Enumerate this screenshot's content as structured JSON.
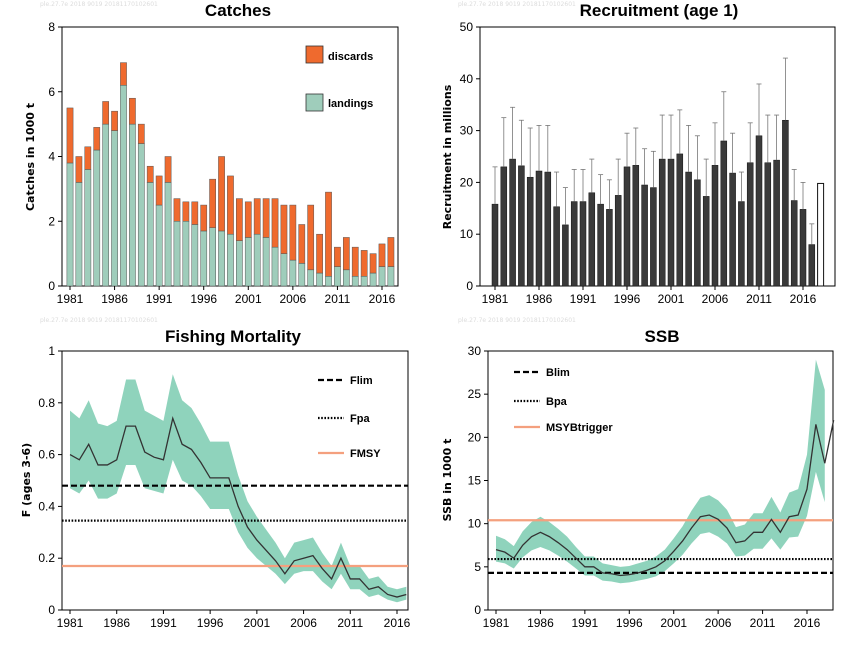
{
  "watermark": "ple.27.7e  2018  9019  20181170102601",
  "colors": {
    "discards": "#ef6a2e",
    "landings": "#9fcdbb",
    "recruit_bar": "#3a3a3a",
    "recruit_last": "#ffffff",
    "ribbon": "#8fd3bc",
    "line": "#333333",
    "ref_black": "#000000",
    "ref_orange": "#f4a07e"
  },
  "chart_data": [
    {
      "id": "catches",
      "type": "bar",
      "stacked": true,
      "title": "Catches",
      "xlabel": "",
      "ylabel": "Catches in 1000 t",
      "ylim": [
        0,
        8
      ],
      "yticks": [
        0,
        2,
        4,
        6,
        8
      ],
      "xticks": [
        1981,
        1986,
        1991,
        1996,
        2001,
        2006,
        2011,
        2016
      ],
      "legend": {
        "placement": "top-right",
        "entries": [
          "discards",
          "landings"
        ]
      },
      "categories": [
        1981,
        1982,
        1983,
        1984,
        1985,
        1986,
        1987,
        1988,
        1989,
        1990,
        1991,
        1992,
        1993,
        1994,
        1995,
        1996,
        1997,
        1998,
        1999,
        2000,
        2001,
        2002,
        2003,
        2004,
        2005,
        2006,
        2007,
        2008,
        2009,
        2010,
        2011,
        2012,
        2013,
        2014,
        2015,
        2016,
        2017
      ],
      "series": [
        {
          "name": "landings",
          "values": [
            3.8,
            3.2,
            3.6,
            4.2,
            5.0,
            4.8,
            6.2,
            5.0,
            4.4,
            3.2,
            2.5,
            3.2,
            2.0,
            2.0,
            1.9,
            1.7,
            1.8,
            1.7,
            1.6,
            1.4,
            1.5,
            1.6,
            1.5,
            1.2,
            1.0,
            0.8,
            0.7,
            0.5,
            0.4,
            0.3,
            0.6,
            0.5,
            0.3,
            0.3,
            0.4,
            0.6,
            0.6
          ]
        },
        {
          "name": "discards",
          "values": [
            1.7,
            0.8,
            0.7,
            0.7,
            0.7,
            0.6,
            0.7,
            0.8,
            0.6,
            0.5,
            0.9,
            0.8,
            0.7,
            0.6,
            0.7,
            0.8,
            1.5,
            2.3,
            1.8,
            1.3,
            1.1,
            1.1,
            1.2,
            1.5,
            1.5,
            1.7,
            1.2,
            2.0,
            1.2,
            2.6,
            0.6,
            1.0,
            0.9,
            0.8,
            0.6,
            0.7,
            0.9
          ]
        }
      ]
    },
    {
      "id": "recruitment",
      "type": "bar",
      "title": "Recruitment (age 1)",
      "xlabel": "",
      "ylabel": "Recruitment in millions",
      "ylim": [
        0,
        50
      ],
      "yticks": [
        0,
        10,
        20,
        30,
        40,
        50
      ],
      "xticks": [
        1981,
        1986,
        1991,
        1996,
        2001,
        2006,
        2011,
        2016
      ],
      "categories": [
        1981,
        1982,
        1983,
        1984,
        1985,
        1986,
        1987,
        1988,
        1989,
        1990,
        1991,
        1992,
        1993,
        1994,
        1995,
        1996,
        1997,
        1998,
        1999,
        2000,
        2001,
        2002,
        2003,
        2004,
        2005,
        2006,
        2007,
        2008,
        2009,
        2010,
        2011,
        2012,
        2013,
        2014,
        2015,
        2016,
        2017,
        2018
      ],
      "values": [
        15.8,
        23.0,
        24.5,
        23.2,
        21.0,
        22.2,
        22.0,
        15.3,
        11.8,
        16.3,
        16.3,
        18.0,
        15.8,
        14.8,
        17.5,
        23.0,
        23.3,
        19.5,
        19.0,
        24.5,
        24.5,
        25.5,
        22.0,
        20.5,
        17.3,
        23.3,
        28.0,
        21.8,
        16.3,
        23.8,
        29.0,
        23.8,
        24.3,
        32.0,
        16.5,
        14.8,
        8.0,
        19.8
      ],
      "upper": [
        23.0,
        32.5,
        34.5,
        32.0,
        30.5,
        31.0,
        31.0,
        22.0,
        19.0,
        22.5,
        22.5,
        24.5,
        21.5,
        20.5,
        24.5,
        29.5,
        30.5,
        26.5,
        26.0,
        33.0,
        33.0,
        34.0,
        31.0,
        29.0,
        24.5,
        31.5,
        37.5,
        29.5,
        22.0,
        31.5,
        39.0,
        33.0,
        33.0,
        44.0,
        22.5,
        20.0,
        12.0,
        null
      ],
      "last_value_highlighted": true
    },
    {
      "id": "fishing-mortality",
      "type": "line",
      "title": "Fishing Mortality",
      "xlabel": "",
      "ylabel": "F (ages 3-6)",
      "ylim": [
        0,
        1
      ],
      "yticks": [
        0,
        0.2,
        0.4,
        0.6,
        0.8,
        1
      ],
      "xticks": [
        1981,
        1986,
        1991,
        1996,
        2001,
        2006,
        2011,
        2016
      ],
      "legend": {
        "placement": "top-right",
        "entries": [
          "Flim",
          "Fpa",
          "FMSY"
        ]
      },
      "x": [
        1981,
        1982,
        1983,
        1984,
        1985,
        1986,
        1987,
        1988,
        1989,
        1990,
        1991,
        1992,
        1993,
        1994,
        1995,
        1996,
        1997,
        1998,
        1999,
        2000,
        2001,
        2002,
        2003,
        2004,
        2005,
        2006,
        2007,
        2008,
        2009,
        2010,
        2011,
        2012,
        2013,
        2014,
        2015,
        2016,
        2017
      ],
      "values": [
        0.6,
        0.58,
        0.64,
        0.56,
        0.56,
        0.58,
        0.71,
        0.71,
        0.61,
        0.59,
        0.58,
        0.74,
        0.64,
        0.62,
        0.57,
        0.51,
        0.51,
        0.51,
        0.4,
        0.32,
        0.27,
        0.23,
        0.19,
        0.14,
        0.19,
        0.2,
        0.21,
        0.16,
        0.12,
        0.2,
        0.12,
        0.12,
        0.08,
        0.09,
        0.06,
        0.05,
        0.06
      ],
      "upper": [
        0.77,
        0.74,
        0.81,
        0.72,
        0.71,
        0.73,
        0.89,
        0.89,
        0.77,
        0.75,
        0.73,
        0.91,
        0.81,
        0.78,
        0.72,
        0.65,
        0.65,
        0.65,
        0.52,
        0.42,
        0.36,
        0.31,
        0.26,
        0.2,
        0.26,
        0.27,
        0.28,
        0.22,
        0.17,
        0.26,
        0.17,
        0.17,
        0.12,
        0.13,
        0.09,
        0.08,
        0.09
      ],
      "lower": [
        0.47,
        0.45,
        0.5,
        0.43,
        0.43,
        0.45,
        0.56,
        0.56,
        0.47,
        0.46,
        0.45,
        0.58,
        0.5,
        0.48,
        0.44,
        0.39,
        0.39,
        0.39,
        0.3,
        0.24,
        0.2,
        0.17,
        0.14,
        0.1,
        0.14,
        0.15,
        0.15,
        0.11,
        0.08,
        0.14,
        0.08,
        0.08,
        0.05,
        0.06,
        0.04,
        0.03,
        0.04
      ],
      "reference_lines": [
        {
          "name": "Flim",
          "value": 0.48,
          "style": "dashed",
          "color": "#000000"
        },
        {
          "name": "Fpa",
          "value": 0.345,
          "style": "dotted",
          "color": "#000000"
        },
        {
          "name": "FMSY",
          "value": 0.17,
          "style": "solid",
          "color": "#f4a07e"
        }
      ]
    },
    {
      "id": "ssb",
      "type": "line",
      "title": "SSB",
      "xlabel": "",
      "ylabel": "SSB in 1000 t",
      "ylim": [
        0,
        30
      ],
      "yticks": [
        0,
        5,
        10,
        15,
        20,
        25,
        30
      ],
      "xticks": [
        1981,
        1986,
        1991,
        1996,
        2001,
        2006,
        2011,
        2016
      ],
      "legend": {
        "placement": "top-left",
        "entries": [
          "Blim",
          "Bpa",
          "MSYBtrigger"
        ]
      },
      "x": [
        1981,
        1982,
        1983,
        1984,
        1985,
        1986,
        1987,
        1988,
        1989,
        1990,
        1991,
        1992,
        1993,
        1994,
        1995,
        1996,
        1997,
        1998,
        1999,
        2000,
        2001,
        2002,
        2003,
        2004,
        2005,
        2006,
        2007,
        2008,
        2009,
        2010,
        2011,
        2012,
        2013,
        2014,
        2015,
        2016,
        2017,
        2018
      ],
      "values": [
        7.0,
        6.7,
        6.0,
        7.5,
        8.5,
        9.0,
        8.5,
        7.8,
        7.0,
        6.0,
        5.0,
        5.0,
        4.3,
        4.2,
        4.0,
        4.1,
        4.3,
        4.6,
        5.0,
        5.7,
        6.8,
        8.0,
        9.5,
        10.8,
        11.0,
        10.5,
        9.5,
        7.8,
        8.0,
        9.0,
        9.0,
        10.5,
        9.0,
        10.8,
        11.0,
        14.0,
        21.5,
        17.0
      ],
      "upper": [
        8.6,
        8.2,
        7.4,
        9.1,
        10.2,
        10.8,
        10.2,
        9.4,
        8.5,
        7.3,
        6.2,
        6.2,
        5.4,
        5.2,
        5.0,
        5.1,
        5.4,
        5.7,
        6.2,
        7.0,
        8.3,
        9.7,
        11.5,
        13.0,
        13.3,
        12.7,
        11.6,
        9.6,
        9.9,
        11.2,
        11.2,
        13.1,
        11.3,
        13.6,
        14.0,
        18.0,
        29.0,
        25.5
      ],
      "lower": [
        5.6,
        5.4,
        4.8,
        6.1,
        6.9,
        7.3,
        6.9,
        6.3,
        5.6,
        4.8,
        4.0,
        4.0,
        3.4,
        3.3,
        3.1,
        3.2,
        3.4,
        3.6,
        3.9,
        4.5,
        5.4,
        6.4,
        7.7,
        8.8,
        9.0,
        8.5,
        7.7,
        6.2,
        6.3,
        7.1,
        7.1,
        8.3,
        7.0,
        8.4,
        8.5,
        10.9,
        16.0,
        12.5
      ],
      "extra_point": {
        "x": 2019,
        "value": 22.0
      },
      "reference_lines": [
        {
          "name": "Blim",
          "value": 4.3,
          "style": "dashed",
          "color": "#000000"
        },
        {
          "name": "Bpa",
          "value": 5.9,
          "style": "dotted",
          "color": "#000000"
        },
        {
          "name": "MSYBtrigger",
          "value": 10.4,
          "style": "solid",
          "color": "#f4a07e"
        }
      ]
    }
  ]
}
